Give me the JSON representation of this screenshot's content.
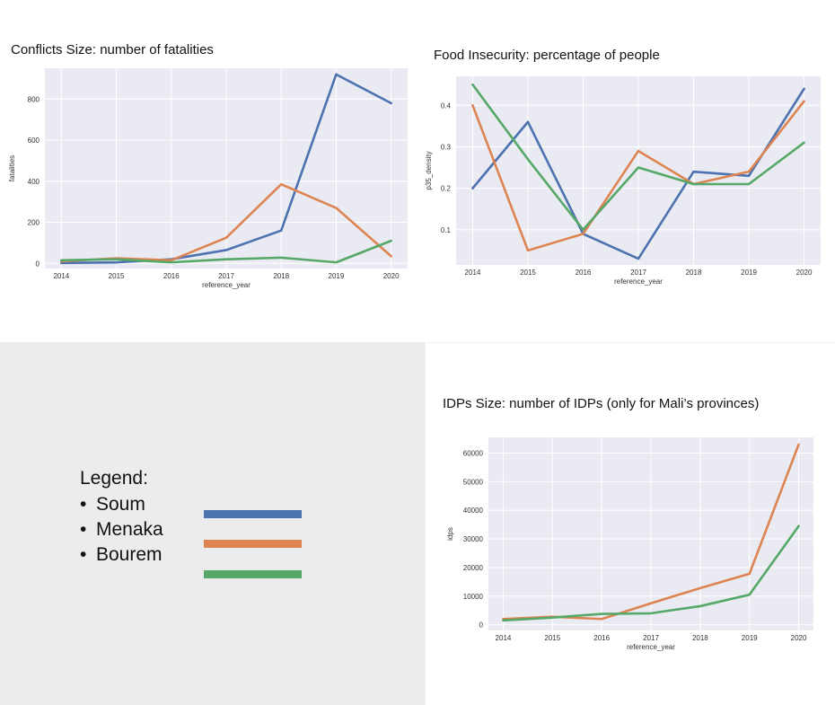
{
  "legend": {
    "heading": "Legend:",
    "bullet": "•",
    "items": [
      {
        "label": "Soum",
        "color": "#4c72b0"
      },
      {
        "label": "Menaka",
        "color": "#dd8452"
      },
      {
        "label": "Bourem",
        "color": "#55a868"
      }
    ]
  },
  "chart_data": [
    {
      "type": "line",
      "title": "Conflicts Size: number of fatalities",
      "xlabel": "reference_year",
      "ylabel": "fatalities",
      "x": [
        2014,
        2015,
        2016,
        2017,
        2018,
        2019,
        2020
      ],
      "xticks": [
        "2014",
        "2015",
        "2016",
        "2017",
        "2018",
        "2019",
        "2020"
      ],
      "yticks": [
        "0",
        "200",
        "400",
        "600",
        "800"
      ],
      "ytick_values": [
        0,
        200,
        400,
        600,
        800
      ],
      "ylim": [
        -25,
        950
      ],
      "grid": true,
      "series": [
        {
          "color": "#4c72b0",
          "values": [
            2,
            5,
            20,
            65,
            160,
            920,
            780
          ]
        },
        {
          "color": "#dd8452",
          "values": [
            10,
            25,
            15,
            125,
            385,
            270,
            35
          ]
        },
        {
          "color": "#55a868",
          "values": [
            15,
            20,
            5,
            20,
            28,
            5,
            110
          ]
        }
      ]
    },
    {
      "type": "line",
      "title": "Food Insecurity: percentage of people",
      "xlabel": "reference_year",
      "ylabel": "p35_density",
      "x": [
        2014,
        2015,
        2016,
        2017,
        2018,
        2019,
        2020
      ],
      "xticks": [
        "2014",
        "2015",
        "2016",
        "2017",
        "2018",
        "2019",
        "2020"
      ],
      "yticks": [
        "0.1",
        "0.2",
        "0.3",
        "0.4"
      ],
      "ytick_values": [
        0.1,
        0.2,
        0.3,
        0.4
      ],
      "ylim": [
        0.015,
        0.47
      ],
      "grid": true,
      "series": [
        {
          "color": "#4c72b0",
          "values": [
            0.2,
            0.36,
            0.09,
            0.03,
            0.24,
            0.23,
            0.44
          ]
        },
        {
          "color": "#dd8452",
          "values": [
            0.4,
            0.05,
            0.09,
            0.29,
            0.21,
            0.24,
            0.41
          ]
        },
        {
          "color": "#55a868",
          "values": [
            0.45,
            0.27,
            0.1,
            0.25,
            0.21,
            0.21,
            0.31
          ]
        }
      ]
    },
    {
      "type": "line",
      "title": "IDPs Size: number of IDPs (only for Mali’s provinces)",
      "xlabel": "reference_year",
      "ylabel": "idps",
      "x": [
        2014,
        2015,
        2016,
        2017,
        2018,
        2019,
        2020
      ],
      "xticks": [
        "2014",
        "2015",
        "2016",
        "2017",
        "2018",
        "2019",
        "2020"
      ],
      "yticks": [
        "0",
        "10000",
        "20000",
        "30000",
        "40000",
        "50000",
        "60000"
      ],
      "ytick_values": [
        0,
        10000,
        20000,
        30000,
        40000,
        50000,
        60000
      ],
      "ylim": [
        -2000,
        65500
      ],
      "grid": true,
      "series": [
        {
          "color": "#dd8452",
          "values": [
            2000,
            2800,
            2000,
            7500,
            12800,
            17800,
            63000
          ]
        },
        {
          "color": "#55a868",
          "values": [
            1500,
            2500,
            3800,
            4000,
            6500,
            10500,
            34500
          ]
        }
      ]
    }
  ]
}
